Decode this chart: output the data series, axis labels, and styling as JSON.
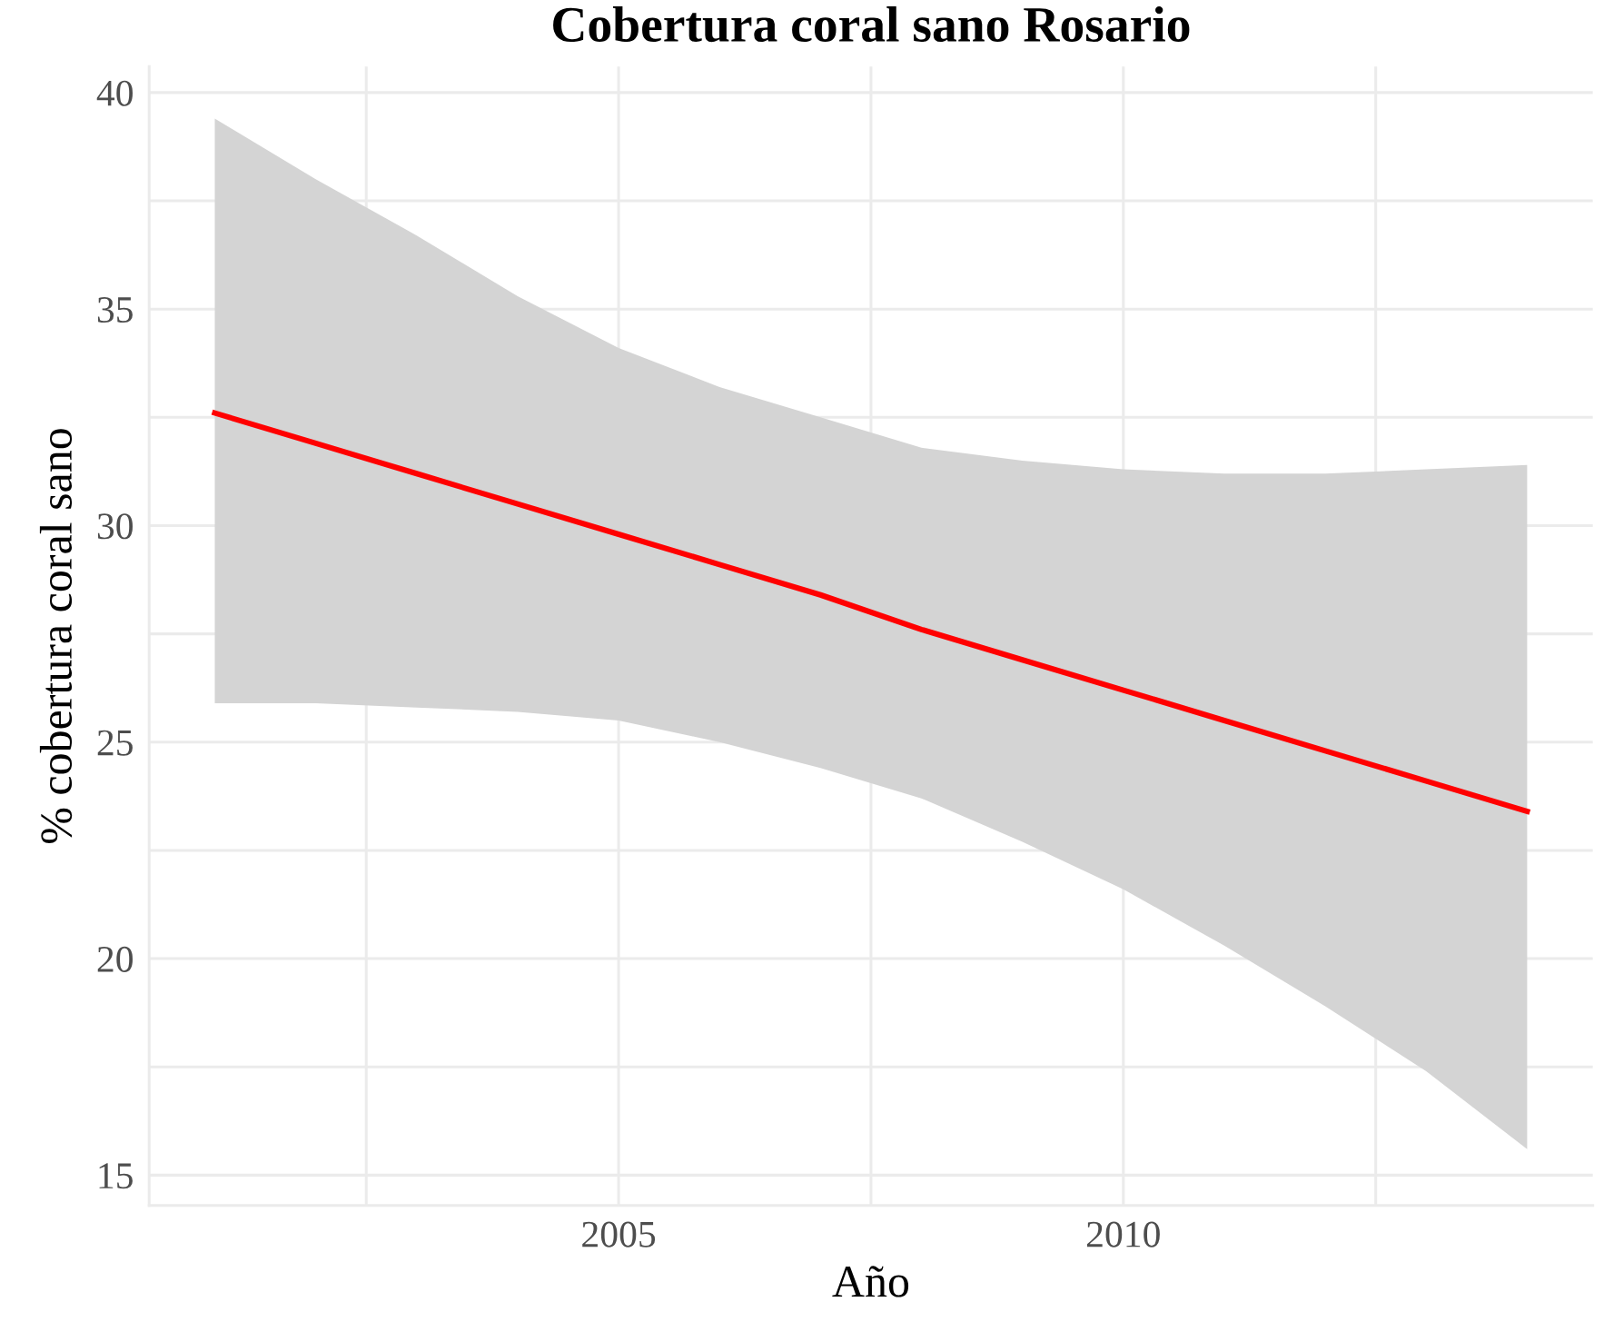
{
  "chart_data": {
    "type": "line",
    "title": "Cobertura coral sano Rosario",
    "xlabel": "Año",
    "ylabel": "% cobertura coral sano",
    "x": [
      2001,
      2002,
      2003,
      2004,
      2005,
      2006,
      2007,
      2008,
      2009,
      2010,
      2011,
      2012,
      2013,
      2014
    ],
    "series": [
      {
        "color": "#ff0000",
        "values": [
          32.6,
          31.9,
          31.2,
          30.5,
          29.8,
          29.1,
          28.4,
          27.6,
          26.9,
          26.2,
          25.5,
          24.8,
          24.1,
          23.4
        ],
        "upper": [
          39.4,
          38.0,
          36.7,
          35.3,
          34.1,
          33.2,
          32.5,
          31.8,
          31.5,
          31.3,
          31.2,
          31.2,
          31.3,
          31.4
        ],
        "lower": [
          25.9,
          25.9,
          25.8,
          25.7,
          25.5,
          25.0,
          24.4,
          23.7,
          22.7,
          21.6,
          20.3,
          18.9,
          17.4,
          15.6
        ]
      }
    ],
    "xlim": [
      2000.35,
      2014.65
    ],
    "ylim": [
      14.3,
      40.6
    ],
    "xticks": [
      {
        "value": 2002.5,
        "label": null
      },
      2005,
      {
        "value": 2007.5,
        "label": null
      },
      2010,
      {
        "value": 2012.5,
        "label": null
      }
    ],
    "yticks": [
      15,
      {
        "value": 17.5,
        "label": null
      },
      20,
      {
        "value": 22.5,
        "label": null
      },
      25,
      {
        "value": 27.5,
        "label": null
      },
      30,
      {
        "value": 32.5,
        "label": null
      },
      35,
      {
        "value": 37.5,
        "label": null
      },
      40
    ],
    "grid": true,
    "marker": "none",
    "line_style": "solid",
    "legend": false
  }
}
